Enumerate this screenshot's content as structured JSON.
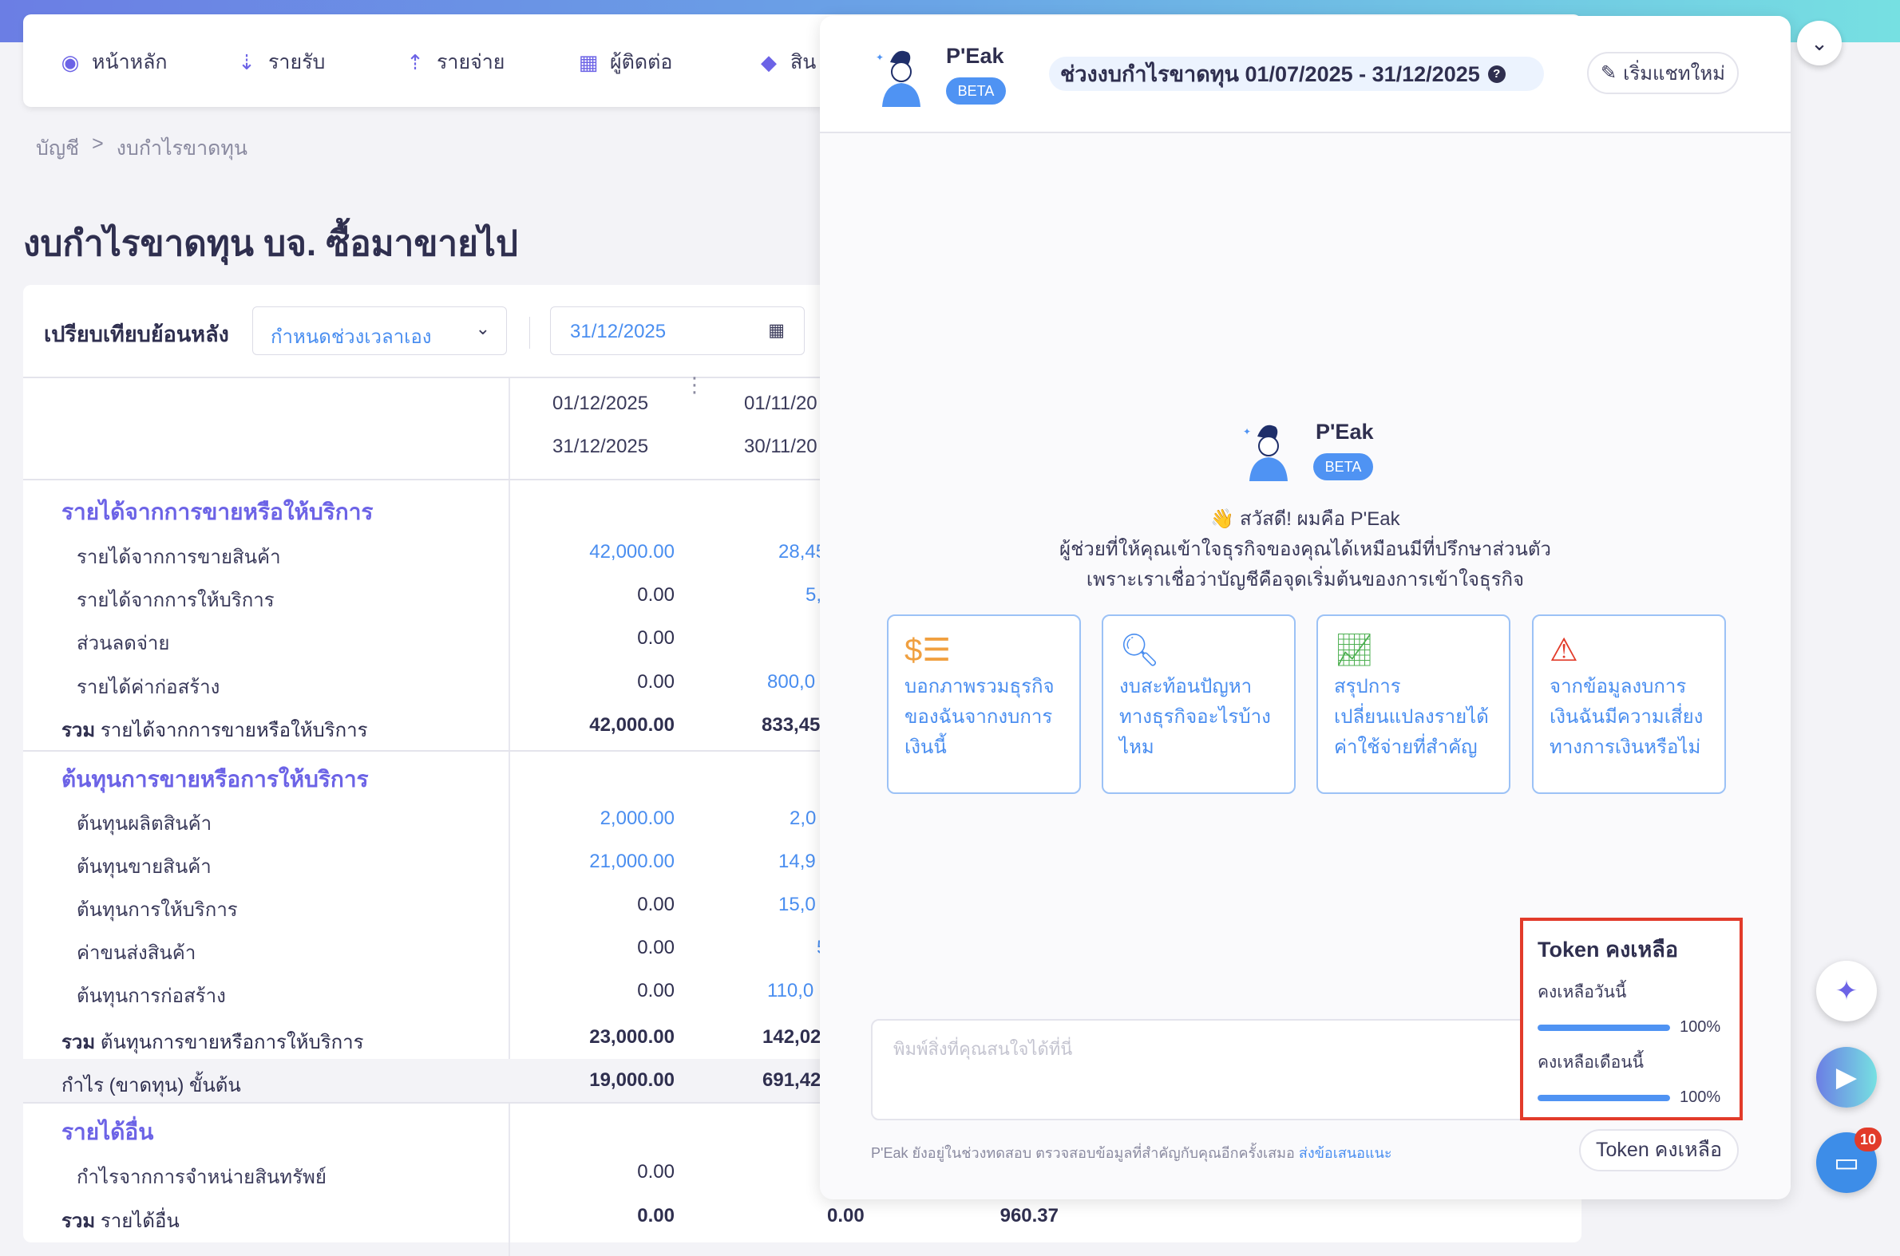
{
  "nav": {
    "items": [
      {
        "label": "หน้าหลัก",
        "icon": "dashboard-icon"
      },
      {
        "label": "รายรับ",
        "icon": "income-icon"
      },
      {
        "label": "รายจ่าย",
        "icon": "expense-icon"
      },
      {
        "label": "ผู้ติดต่อ",
        "icon": "contacts-icon"
      },
      {
        "label": "สิน",
        "icon": "product-box-icon"
      }
    ]
  },
  "breadcrumb": {
    "root": "บัญชี",
    "sep": ">",
    "current": "งบกำไรขาดทุน"
  },
  "page_title": "งบกำไรขาดทุน บจ. ซื้อมาขายไป",
  "filter": {
    "label": "เปรียบเทียบย้อนหลัง",
    "period_select": "กำหนดช่วงเวลาเอง",
    "date": "31/12/2025"
  },
  "table": {
    "col1": {
      "from": "01/12/2025",
      "to": "31/12/2025"
    },
    "col2": {
      "from": "01/11/20",
      "to": "30/11/20"
    },
    "rows": [
      {
        "label": "รายได้จากการขายหรือให้บริการ",
        "type": "section"
      },
      {
        "label": "รายได้จากการขายสินค้า",
        "v1": "42,000.00",
        "v2": "28,45",
        "link1": true,
        "link2": true
      },
      {
        "label": "รายได้จากการให้บริการ",
        "v1": "0.00",
        "v2": "5,0",
        "link2": true
      },
      {
        "label": "ส่วนลดจ่าย",
        "v1": "0.00",
        "v2": ""
      },
      {
        "label": "รายได้ค่าก่อสร้าง",
        "v1": "0.00",
        "v2": "800,0",
        "link2": true
      },
      {
        "label": "รายได้จากการขายหรือให้บริการ",
        "prefix": "รวม",
        "type": "total",
        "v1": "42,000.00",
        "v2": "833,45"
      },
      {
        "label": "ต้นทุนการขายหรือการให้บริการ",
        "type": "section"
      },
      {
        "label": "ต้นทุนผลิตสินค้า",
        "v1": "2,000.00",
        "v2": "2,0",
        "link1": true,
        "link2": true
      },
      {
        "label": "ต้นทุนขายสินค้า",
        "v1": "21,000.00",
        "v2": "14,9",
        "link1": true,
        "link2": true
      },
      {
        "label": "ต้นทุนการให้บริการ",
        "v1": "0.00",
        "v2": "15,0",
        "link2": true
      },
      {
        "label": "ค่าขนส่งสินค้า",
        "v1": "0.00",
        "v2": "5",
        "link2": true
      },
      {
        "label": "ต้นทุนการก่อสร้าง",
        "v1": "0.00",
        "v2": "110,0",
        "link2": true
      },
      {
        "label": "ต้นทุนการขายหรือการให้บริการ",
        "prefix": "รวม",
        "type": "total",
        "v1": "23,000.00",
        "v2": "142,02"
      },
      {
        "label": "กำไร (ขาดทุน) ขั้นต้น",
        "type": "profit",
        "v1": "19,000.00",
        "v2": "691,42"
      },
      {
        "label": "รายได้อื่น",
        "type": "section"
      },
      {
        "label": "กำไรจากการจำหน่ายสินทรัพย์",
        "v1": "0.00"
      },
      {
        "label": "รายได้อื่น",
        "prefix": "รวม",
        "type": "total",
        "v1": "0.00",
        "v2": "0.00",
        "v3": "960.37"
      }
    ]
  },
  "chat": {
    "name": "P'Eak",
    "beta": "BETA",
    "period": "ช่วงงบกำไรขาดทุน 01/07/2025 - 31/12/2025",
    "help": "?",
    "new_chat": "เริ่มแชทใหม่",
    "greeting": "👋 สวัสดี! ผมคือ P'Eak",
    "intro1": "ผู้ช่วยที่ให้คุณเข้าใจธุรกิจของคุณได้เหมือนมีที่ปรึกษาส่วนตัว",
    "intro2": "เพราะเราเชื่อว่าบัญชีคือจุดเริ่มต้นของการเข้าใจธุรกิจ",
    "suggestions": [
      {
        "text": "บอกภาพรวมธุรกิจของฉันจากงบการเงินนี้",
        "icon": "coins-icon",
        "color": "#f0a040"
      },
      {
        "text": "งบสะท้อนปัญหาทางธุรกิจอะไรบ้างไหม",
        "icon": "search-dollar-icon",
        "color": "#4a8ef0"
      },
      {
        "text": "สรุปการเปลี่ยนแปลงรายได้ค่าใช้จ่ายที่สำคัญ",
        "icon": "chart-icon",
        "color": "#4caf50"
      },
      {
        "text": "จากข้อมูลงบการเงินฉันมีความเสี่ยงทางการเงินหรือไม่",
        "icon": "warning-icon",
        "color": "#e23b2a"
      }
    ],
    "input_placeholder": "พิมพ์สิ่งที่คุณสนใจได้ที่นี่",
    "footer": "P'Eak ยังอยู่ในช่วงทดสอบ ตรวจสอบข้อมูลที่สำคัญกับคุณอีกครั้งเสมอ",
    "feedback_link": "ส่งข้อเสนอแนะ",
    "token_button": "Token คงเหลือ",
    "token": {
      "title": "Token คงเหลือ",
      "today_label": "คงเหลือวันนี้",
      "today_pct": 100,
      "today_text": "100%",
      "month_label": "คงเหลือเดือนนี้",
      "month_pct": 100,
      "month_text": "100%"
    }
  },
  "fab": {
    "chat_badge": "10"
  }
}
